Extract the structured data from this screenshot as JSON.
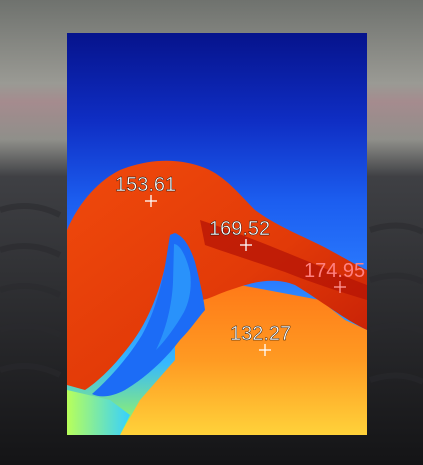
{
  "image": {
    "description_icon": "thermal-overlay-icon",
    "colors": {
      "cold": "#0a1a9c",
      "cool": "#1c5ef0",
      "cyan": "#36b8ff",
      "warm": "#f04a0c",
      "hot": "#c01a06",
      "yellow": "#ffd23a",
      "green": "#a6ff4a",
      "label_white": "#ffffff",
      "label_red": "#ff8080"
    }
  },
  "readings": [
    {
      "value": "153.61"
    },
    {
      "value": "169.52"
    },
    {
      "value": "174.95"
    },
    {
      "value": "132.27"
    }
  ]
}
